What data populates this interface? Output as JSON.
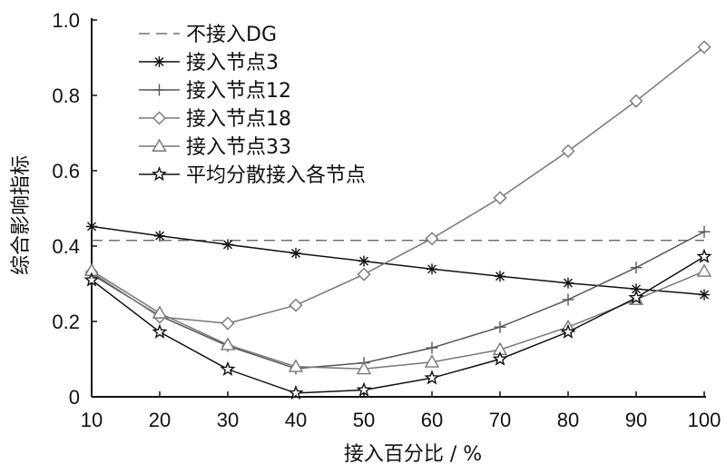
{
  "chart_data": {
    "type": "line",
    "xlabel": "接入百分比 / %",
    "ylabel": "综合影响指标",
    "xlim": [
      10,
      100
    ],
    "ylim": [
      0,
      1.0
    ],
    "x_ticks": [
      "10",
      "20",
      "30",
      "40",
      "50",
      "60",
      "70",
      "80",
      "90",
      "100"
    ],
    "y_ticks": [
      "0",
      "0.2",
      "0.4",
      "0.6",
      "0.8",
      "1.0"
    ],
    "grid": false,
    "legend_position": "top-left",
    "reference_line": {
      "name": "不接入DG",
      "value": 0.415,
      "color": "#555555",
      "style": "dashed"
    },
    "x": [
      10,
      20,
      30,
      40,
      50,
      60,
      70,
      80,
      90,
      100
    ],
    "series": [
      {
        "name": "接入节点3",
        "marker": "asterisk",
        "color": "#111111",
        "values": [
          0.452,
          0.427,
          0.404,
          0.381,
          0.36,
          0.339,
          0.32,
          0.302,
          0.286,
          0.271
        ]
      },
      {
        "name": "接入节点12",
        "marker": "plus",
        "color": "#555555",
        "values": [
          0.325,
          0.215,
          0.135,
          0.075,
          0.09,
          0.13,
          0.185,
          0.258,
          0.343,
          0.438
        ]
      },
      {
        "name": "接入节点18",
        "marker": "diamond",
        "color": "#777777",
        "values": [
          0.33,
          0.212,
          0.195,
          0.243,
          0.325,
          0.42,
          0.528,
          0.652,
          0.785,
          0.928
        ]
      },
      {
        "name": "接入节点33",
        "marker": "triangle",
        "color": "#777777",
        "values": [
          0.335,
          0.222,
          0.138,
          0.08,
          0.074,
          0.092,
          0.125,
          0.185,
          0.258,
          0.333
        ]
      },
      {
        "name": "平均分散接入各节点",
        "marker": "star",
        "color": "#111111",
        "values": [
          0.31,
          0.172,
          0.073,
          0.01,
          0.018,
          0.05,
          0.1,
          0.172,
          0.263,
          0.372
        ]
      }
    ]
  }
}
